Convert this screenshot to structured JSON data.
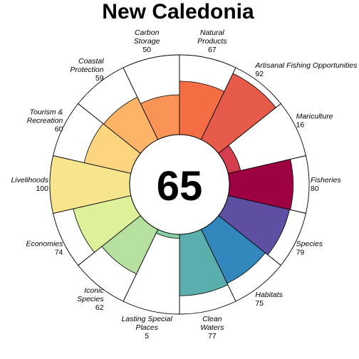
{
  "chart_data": {
    "type": "flower",
    "title": "New Caledonia",
    "overall_score": "65",
    "ylim": [
      0,
      100
    ],
    "grid": false,
    "petals": [
      {
        "label": "Fisheries",
        "value": 80,
        "color": "#9E0142"
      },
      {
        "label": "Species",
        "value": 79,
        "color": "#5E4FA2"
      },
      {
        "label": "Habitats",
        "value": 75,
        "color": "#3288BD"
      },
      {
        "label": "Clean Waters",
        "value": 77,
        "color": "#5AAEAB"
      },
      {
        "label": "Lasting Special Places",
        "value": 5,
        "color": "#88D1A4"
      },
      {
        "label": "Iconic Species",
        "value": 62,
        "color": "#B6E09E"
      },
      {
        "label": "Economies",
        "value": 74,
        "color": "#DDF09A"
      },
      {
        "label": "Livelihoods",
        "value": 100,
        "color": "#F7E58D"
      },
      {
        "label": "Tourism & Recreation",
        "value": 60,
        "color": "#FDD57F"
      },
      {
        "label": "Coastal Protection",
        "value": 59,
        "color": "#FDB466"
      },
      {
        "label": "Carbon Storage",
        "value": 50,
        "color": "#F99456"
      },
      {
        "label": "Natural Products",
        "value": 67,
        "color": "#F46D43"
      },
      {
        "label": "Artisanal Fishing Opportunities",
        "value": 92,
        "color": "#E55A49"
      },
      {
        "label": "Mariculture",
        "value": 16,
        "color": "#D53E4F"
      }
    ]
  }
}
